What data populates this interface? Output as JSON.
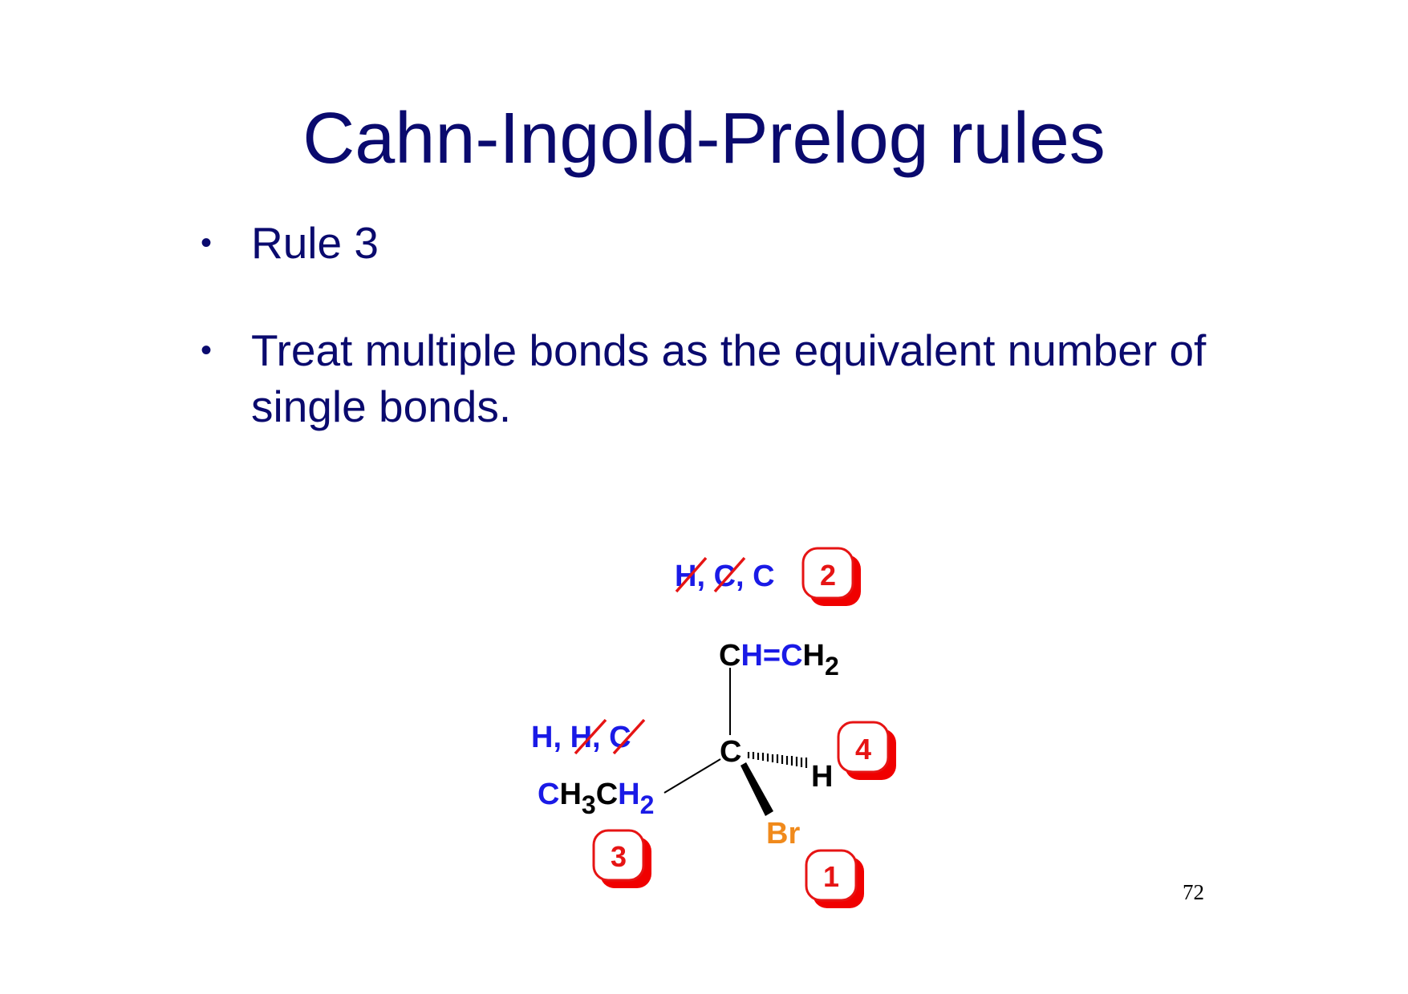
{
  "slide": {
    "title": "Cahn-Ingold-Prelog rules",
    "bullets": [
      "Rule 3",
      "Treat multiple bonds as the equivalent number of single bonds."
    ],
    "page_number": "72"
  },
  "diagram": {
    "center_atom": "C",
    "substituents": {
      "vinyl": {
        "parts": [
          "C",
          "H=C",
          "H",
          "2"
        ],
        "duplicate_atoms": [
          "H",
          "C",
          "C"
        ],
        "separator": ", ",
        "crossed_out": [
          true,
          true,
          false
        ],
        "priority": "2"
      },
      "ethyl": {
        "parts": [
          "C",
          "H",
          "3",
          "C",
          "H",
          "2"
        ],
        "duplicate_atoms": [
          "H",
          "H",
          "C"
        ],
        "separator": ", ",
        "crossed_out": [
          false,
          true,
          true
        ],
        "priority": "3"
      },
      "hydrogen": {
        "label": "H",
        "priority": "4"
      },
      "bromine": {
        "label": "Br",
        "priority": "1"
      }
    },
    "colors": {
      "title_text": "#0a0a6e",
      "atom_black": "#000000",
      "atom_blue": "#1a1ae6",
      "bromine": "#f08a1c",
      "priority_border": "#e61414",
      "priority_shadow": "#f00000",
      "strike": "#e61414"
    }
  }
}
